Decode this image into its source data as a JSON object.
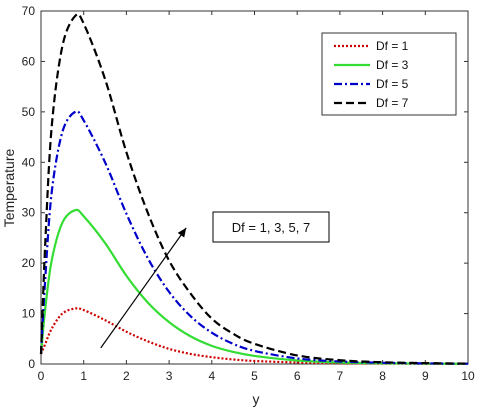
{
  "chart_data": {
    "type": "line",
    "xlabel": "y",
    "ylabel": "Temperature",
    "xlim": [
      0,
      10
    ],
    "ylim": [
      0,
      70
    ],
    "xticks": [
      "0",
      "1",
      "2",
      "3",
      "4",
      "5",
      "6",
      "7",
      "8",
      "9",
      "10"
    ],
    "yticks": [
      "0",
      "10",
      "20",
      "30",
      "40",
      "50",
      "60",
      "70"
    ],
    "grid": false,
    "legend_position": "top-right",
    "x": [
      0,
      0.1,
      0.25,
      0.5,
      0.8,
      1.0,
      1.5,
      2.0,
      2.5,
      3.0,
      3.5,
      4.0,
      4.5,
      5.0,
      6.0,
      7.0,
      8.0,
      9.0,
      10.0
    ],
    "series": [
      {
        "name": "Df = 1",
        "color": "#cc0000",
        "dash": "dotted",
        "values": [
          2.0,
          4.0,
          7.0,
          10.0,
          11.0,
          10.7,
          8.7,
          6.4,
          4.5,
          3.0,
          2.0,
          1.35,
          0.9,
          0.6,
          0.3,
          0.15,
          0.08,
          0.04,
          0.02
        ]
      },
      {
        "name": "Df = 3",
        "color": "#33dd33",
        "dash": "solid",
        "values": [
          2.0,
          11.0,
          20.5,
          28.0,
          30.5,
          29.3,
          24.0,
          17.5,
          12.2,
          8.3,
          5.5,
          3.6,
          2.4,
          1.6,
          0.7,
          0.3,
          0.15,
          0.08,
          0.05
        ]
      },
      {
        "name": "Df = 5",
        "color": "#0000cc",
        "dash": "dashdot",
        "values": [
          2.0,
          17.0,
          34.0,
          46.0,
          50.0,
          48.3,
          40.0,
          29.8,
          21.0,
          14.3,
          9.5,
          6.2,
          4.0,
          2.6,
          1.1,
          0.5,
          0.25,
          0.12,
          0.06
        ]
      },
      {
        "name": "Df = 7",
        "color": "#000000",
        "dash": "dashed",
        "values": [
          2.0,
          24.0,
          47.0,
          63.0,
          69.0,
          67.5,
          56.5,
          42.0,
          30.0,
          20.5,
          14.0,
          9.0,
          6.0,
          4.0,
          1.7,
          0.75,
          0.35,
          0.17,
          0.08
        ]
      }
    ],
    "annotation": {
      "text": "Df = 1, 3, 5, 7",
      "arrow_from": [
        1.4,
        3.2
      ],
      "arrow_to": [
        3.4,
        27.0
      ]
    }
  }
}
